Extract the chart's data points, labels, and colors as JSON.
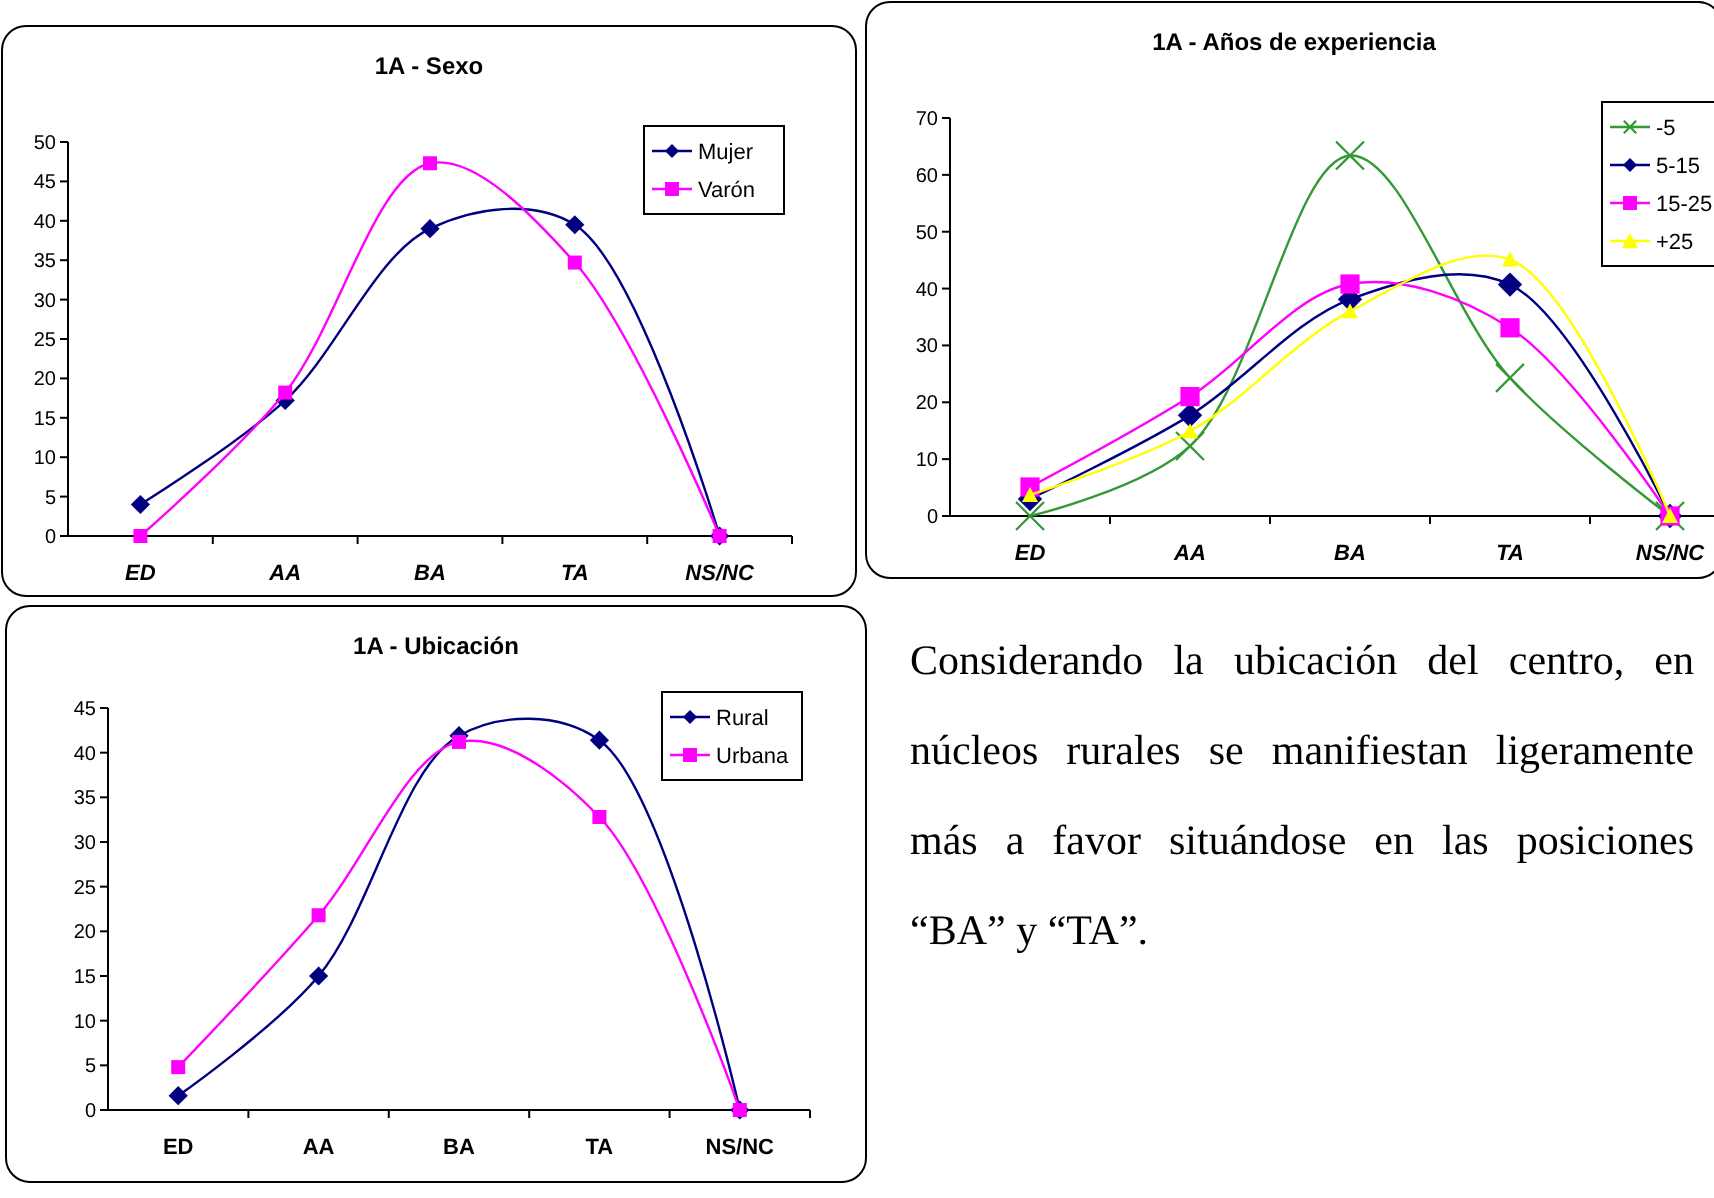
{
  "chart_data": [
    {
      "type": "line",
      "title": "1A - Sexo",
      "categories": [
        "ED",
        "AA",
        "BA",
        "TA",
        "NS/NC"
      ],
      "ylim": [
        0,
        50
      ],
      "yticks": [
        0,
        5,
        10,
        15,
        20,
        25,
        30,
        35,
        40,
        45,
        50
      ],
      "legend": "top right",
      "grid": false,
      "series": [
        {
          "name": "Mujer",
          "color": "#000080",
          "marker": "diamond",
          "values": [
            4,
            17.2,
            39,
            39.5,
            0
          ]
        },
        {
          "name": "Varón",
          "color": "#ff00ff",
          "marker": "square",
          "values": [
            0,
            18.2,
            47.3,
            34.7,
            0
          ]
        }
      ]
    },
    {
      "type": "line",
      "title": "1A - Años de experiencia",
      "categories": [
        "ED",
        "AA",
        "BA",
        "TA",
        "NS/NC"
      ],
      "ylim": [
        0,
        70
      ],
      "yticks": [
        0,
        10,
        20,
        30,
        40,
        50,
        60,
        70
      ],
      "legend": "top right",
      "grid": false,
      "series": [
        {
          "name": "-5",
          "color": "#339933",
          "marker": "cross",
          "values": [
            0,
            12.3,
            63.4,
            24.3,
            0
          ]
        },
        {
          "name": "5-15",
          "color": "#000080",
          "marker": "diamond",
          "values": [
            3,
            17.7,
            38.1,
            40.7,
            0
          ]
        },
        {
          "name": "15-25",
          "color": "#ff00ff",
          "marker": "square",
          "values": [
            5.1,
            21,
            40.8,
            33.1,
            0
          ]
        },
        {
          "name": "+25",
          "color": "#ffff00",
          "marker": "triangle",
          "values": [
            3.7,
            14.9,
            36,
            45.1,
            0
          ]
        }
      ]
    },
    {
      "type": "line",
      "title": "1A - Ubicación",
      "categories": [
        "ED",
        "AA",
        "BA",
        "TA",
        "NS/NC"
      ],
      "ylim": [
        0,
        45
      ],
      "yticks": [
        0,
        5,
        10,
        15,
        20,
        25,
        30,
        35,
        40,
        45
      ],
      "legend": "top right",
      "grid": false,
      "series": [
        {
          "name": "Rural",
          "color": "#000080",
          "marker": "diamond",
          "values": [
            1.6,
            15,
            41.9,
            41.4,
            0
          ]
        },
        {
          "name": "Urbana",
          "color": "#ff00ff",
          "marker": "square",
          "values": [
            4.8,
            21.8,
            41.2,
            32.8,
            0
          ]
        }
      ]
    },
    {
      "type": "other",
      "annotations": [
        "Considerando la ubicación del centro, en núcleos rurales se manifiestan ligeramente más a favor situándose en las posiciones “BA” y “TA”."
      ]
    }
  ]
}
